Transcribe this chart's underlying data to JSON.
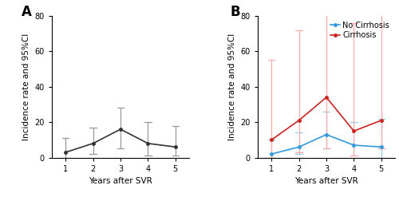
{
  "panel_A": {
    "x": [
      1,
      2,
      3,
      4,
      5
    ],
    "y": [
      3,
      8,
      16,
      8,
      6
    ],
    "ci_low": [
      0,
      2,
      5,
      1,
      1
    ],
    "ci_high": [
      11,
      17,
      28,
      20,
      18
    ],
    "color": "#333333",
    "ci_color": "#999999"
  },
  "panel_B": {
    "no_cirrhosis": {
      "x": [
        1,
        2,
        3,
        4,
        5
      ],
      "y": [
        2,
        6,
        13,
        7,
        6
      ],
      "ci_low": [
        0,
        2,
        5,
        1,
        0
      ],
      "ci_high": [
        10,
        14,
        26,
        20,
        22
      ],
      "color": "#3399dd",
      "ci_color": "#99ccee"
    },
    "cirrhosis": {
      "x": [
        1,
        2,
        3,
        4,
        5
      ],
      "y": [
        10,
        21,
        34,
        15,
        21
      ],
      "ci_low": [
        0,
        3,
        5,
        1,
        5
      ],
      "ci_high": [
        55,
        72,
        83,
        76,
        83
      ],
      "color": "#cc2222",
      "ci_color": "#ffaaaa"
    }
  },
  "xlabel": "Years after SVR",
  "ylabel": "Incidence rate and 95%CI",
  "ylim": [
    0,
    80
  ],
  "yticks": [
    0,
    20,
    40,
    60,
    80
  ],
  "xticks": [
    1,
    2,
    3,
    4,
    5
  ],
  "legend_no_cirrhosis": "No Cirrhosis",
  "legend_cirrhosis": "Cirrhosis",
  "label_A": "A",
  "label_B": "B",
  "label_fontsize": 12,
  "axis_fontsize": 7.5,
  "tick_fontsize": 7,
  "legend_fontsize": 7
}
